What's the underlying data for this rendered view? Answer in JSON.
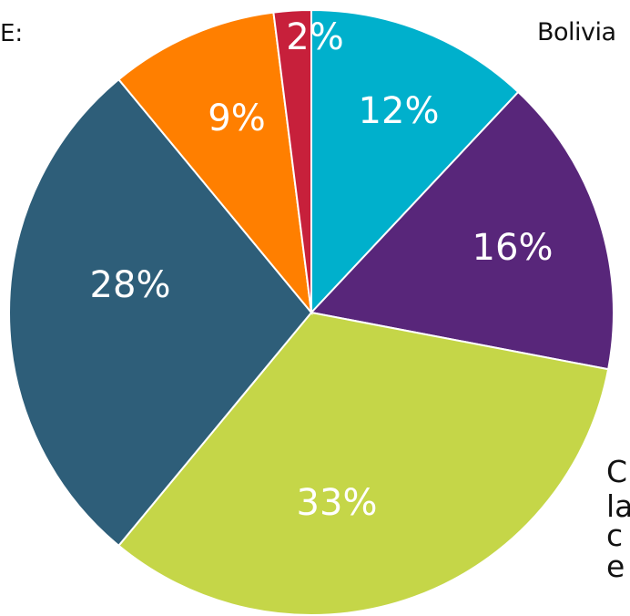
{
  "header": {
    "left_label": "E:",
    "country": "Bolivia"
  },
  "side_text": [
    "C",
    "la",
    "c",
    "e"
  ],
  "colors": {
    "cyan": "#00b0cc",
    "purple": "#58267a",
    "lime": "#c5d648",
    "teal": "#2e5e79",
    "orange": "#ff7f00",
    "red": "#c7203b"
  },
  "chart_data": {
    "type": "pie",
    "start_angle_deg": 0,
    "direction": "clockwise",
    "slices": [
      {
        "label": "12%",
        "value": 12,
        "color": "#00b0cc"
      },
      {
        "label": "16%",
        "value": 16,
        "color": "#58267a"
      },
      {
        "label": "33%",
        "value": 33,
        "color": "#c5d648"
      },
      {
        "label": "28%",
        "value": 28,
        "color": "#2e5e79"
      },
      {
        "label": "9%",
        "value": 9,
        "color": "#ff7f00"
      },
      {
        "label": "2%",
        "value": 2,
        "color": "#c7203b"
      }
    ]
  }
}
